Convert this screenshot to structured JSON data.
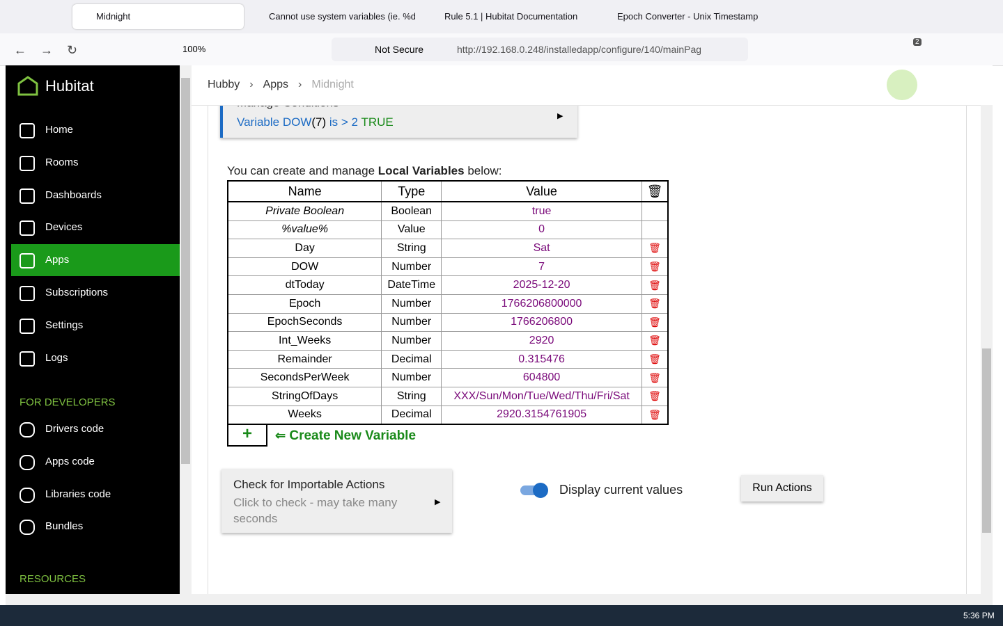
{
  "browser": {
    "tabs": [
      "Midnight",
      "Cannot use system variables (ie. %d",
      "Rule 5.1 | Hubitat Documentation",
      "Epoch Converter - Unix Timestamp"
    ],
    "zoom": "100%",
    "security": "Not Secure",
    "url": "http://192.168.0.248/installedapp/configure/140/mainPag",
    "badge": "2"
  },
  "sidebar": {
    "brand": "Hubitat",
    "nav": [
      "Home",
      "Rooms",
      "Dashboards",
      "Devices",
      "Apps",
      "Subscriptions",
      "Settings",
      "Logs"
    ],
    "active": "Apps",
    "developers_title": "FOR DEVELOPERS",
    "developers": [
      "Drivers code",
      "Apps code",
      "Libraries code",
      "Bundles"
    ],
    "resources_title": "RESOURCES"
  },
  "breadcrumb": [
    "Hubby",
    "Apps",
    "Midnight"
  ],
  "conditions": {
    "title": "Manage Conditions",
    "variable": "Variable DOW",
    "current": "(7)",
    "test": "is > 2",
    "result": "TRUE"
  },
  "intro": {
    "before": "You can create and manage",
    "bold": "Local Variables",
    "after": "below:"
  },
  "table": {
    "headers": [
      "Name",
      "Type",
      "Value"
    ],
    "rows": [
      {
        "name": "Private Boolean",
        "type": "Boolean",
        "value": "true",
        "system": true
      },
      {
        "name": "%value%",
        "type": "Value",
        "value": "0",
        "system": true
      },
      {
        "name": "Day",
        "type": "String",
        "value": "Sat"
      },
      {
        "name": "DOW",
        "type": "Number",
        "value": "7"
      },
      {
        "name": "dtToday",
        "type": "DateTime",
        "value": "2025-12-20"
      },
      {
        "name": "Epoch",
        "type": "Number",
        "value": "1766206800000"
      },
      {
        "name": "EpochSeconds",
        "type": "Number",
        "value": "1766206800"
      },
      {
        "name": "Int_Weeks",
        "type": "Number",
        "value": "2920"
      },
      {
        "name": "Remainder",
        "type": "Decimal",
        "value": "0.315476"
      },
      {
        "name": "SecondsPerWeek",
        "type": "Number",
        "value": "604800"
      },
      {
        "name": "StringOfDays",
        "type": "String",
        "value": "XXX/Sun/Mon/Tue/Wed/Thu/Fri/Sat"
      },
      {
        "name": "Weeks",
        "type": "Decimal",
        "value": "2920.3154761905"
      }
    ]
  },
  "create": {
    "plus": "+",
    "label": "Create New Variable"
  },
  "importable": {
    "title": "Check for Importable Actions",
    "subtitle": "Click to check - may take many seconds"
  },
  "toggle": {
    "label": "Display current values",
    "on": true
  },
  "button": "Run Actions",
  "taskbar": {
    "time": "5:36 PM"
  }
}
